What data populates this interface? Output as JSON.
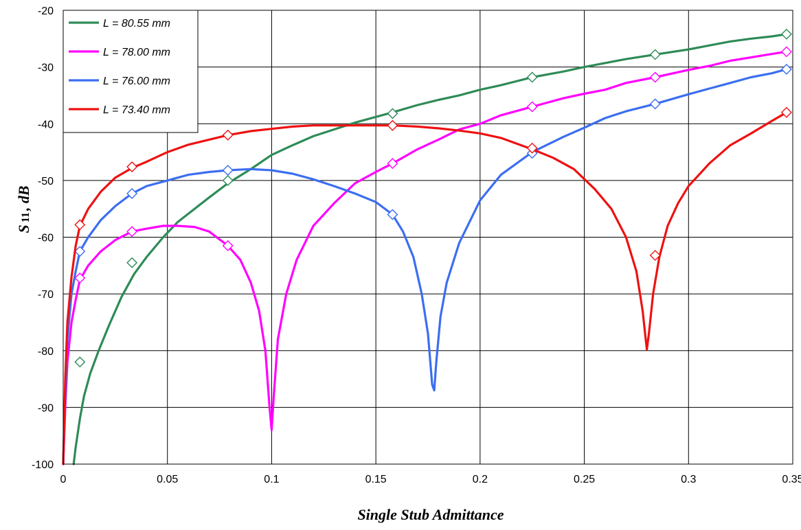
{
  "chart_data": {
    "type": "line",
    "xlabel": "Single Stub Admittance",
    "ylabel": {
      "main": "S",
      "sub": "11",
      "rest": ", dB"
    },
    "xlim": [
      0,
      0.35
    ],
    "ylim": [
      -100,
      -20
    ],
    "x_ticks": [
      0,
      0.05,
      0.1,
      0.15,
      0.2,
      0.25,
      0.3,
      0.35
    ],
    "x_tick_labels": [
      "0",
      "0.05",
      "0.1",
      "0.15",
      "0.2",
      "0.25",
      "0.3",
      "0.35"
    ],
    "y_ticks": [
      -20,
      -30,
      -40,
      -50,
      -60,
      -70,
      -80,
      -90,
      -100
    ],
    "y_tick_labels": [
      "-20",
      "-30",
      "-40",
      "-50",
      "-60",
      "-70",
      "-80",
      "-90",
      "-100"
    ],
    "grid": true,
    "legend_position": "top-left",
    "series": [
      {
        "name": "L = 80.55 mm",
        "color": "#2e8b57",
        "line": [
          [
            0.005,
            -100
          ],
          [
            0.006,
            -97
          ],
          [
            0.008,
            -92
          ],
          [
            0.01,
            -88
          ],
          [
            0.013,
            -84
          ],
          [
            0.017,
            -80
          ],
          [
            0.022,
            -75.5
          ],
          [
            0.028,
            -70.5
          ],
          [
            0.034,
            -66.5
          ],
          [
            0.04,
            -63.5
          ],
          [
            0.048,
            -60
          ],
          [
            0.055,
            -57.3
          ],
          [
            0.063,
            -55
          ],
          [
            0.07,
            -53
          ],
          [
            0.079,
            -50.5
          ],
          [
            0.09,
            -48
          ],
          [
            0.1,
            -45.5
          ],
          [
            0.11,
            -43.8
          ],
          [
            0.12,
            -42.2
          ],
          [
            0.13,
            -41
          ],
          [
            0.14,
            -39.8
          ],
          [
            0.15,
            -38.8
          ],
          [
            0.158,
            -38
          ],
          [
            0.17,
            -36.7
          ],
          [
            0.18,
            -35.8
          ],
          [
            0.19,
            -35
          ],
          [
            0.2,
            -34
          ],
          [
            0.21,
            -33.2
          ],
          [
            0.225,
            -31.8
          ],
          [
            0.24,
            -30.8
          ],
          [
            0.25,
            -30
          ],
          [
            0.26,
            -29.3
          ],
          [
            0.27,
            -28.6
          ],
          [
            0.284,
            -27.8
          ],
          [
            0.3,
            -26.9
          ],
          [
            0.31,
            -26.2
          ],
          [
            0.32,
            -25.5
          ],
          [
            0.33,
            -25
          ],
          [
            0.34,
            -24.6
          ],
          [
            0.347,
            -24.2
          ]
        ],
        "markers": [
          [
            0.008,
            -82
          ],
          [
            0.033,
            -64.5
          ],
          [
            0.079,
            -50
          ],
          [
            0.158,
            -38.2
          ],
          [
            0.225,
            -31.8
          ],
          [
            0.284,
            -27.8
          ],
          [
            0.347,
            -24.2
          ]
        ]
      },
      {
        "name": "L = 78.00 mm",
        "color": "#ff00ff",
        "line": [
          [
            0.0,
            -100
          ],
          [
            0.001,
            -90
          ],
          [
            0.002,
            -82
          ],
          [
            0.004,
            -75
          ],
          [
            0.006,
            -71
          ],
          [
            0.008,
            -67.5
          ],
          [
            0.012,
            -65
          ],
          [
            0.018,
            -62.5
          ],
          [
            0.025,
            -60.5
          ],
          [
            0.033,
            -59
          ],
          [
            0.04,
            -58.5
          ],
          [
            0.048,
            -58
          ],
          [
            0.055,
            -58
          ],
          [
            0.063,
            -58.2
          ],
          [
            0.07,
            -59
          ],
          [
            0.079,
            -61.5
          ],
          [
            0.085,
            -64
          ],
          [
            0.09,
            -68
          ],
          [
            0.094,
            -73
          ],
          [
            0.097,
            -80
          ],
          [
            0.099,
            -90
          ],
          [
            0.1,
            -94
          ],
          [
            0.101,
            -88
          ],
          [
            0.103,
            -78
          ],
          [
            0.107,
            -70
          ],
          [
            0.112,
            -64
          ],
          [
            0.12,
            -58
          ],
          [
            0.13,
            -54
          ],
          [
            0.14,
            -50.5
          ],
          [
            0.15,
            -48.5
          ],
          [
            0.158,
            -47
          ],
          [
            0.17,
            -44.5
          ],
          [
            0.18,
            -42.8
          ],
          [
            0.19,
            -41
          ],
          [
            0.2,
            -40
          ],
          [
            0.21,
            -38.5
          ],
          [
            0.225,
            -37
          ],
          [
            0.24,
            -35.5
          ],
          [
            0.25,
            -34.7
          ],
          [
            0.26,
            -34
          ],
          [
            0.27,
            -32.8
          ],
          [
            0.284,
            -31.8
          ],
          [
            0.3,
            -30.5
          ],
          [
            0.31,
            -29.8
          ],
          [
            0.32,
            -28.9
          ],
          [
            0.33,
            -28.3
          ],
          [
            0.34,
            -27.7
          ],
          [
            0.347,
            -27.3
          ]
        ],
        "markers": [
          [
            0.008,
            -67.2
          ],
          [
            0.033,
            -59
          ],
          [
            0.079,
            -61.5
          ],
          [
            0.158,
            -47
          ],
          [
            0.225,
            -37
          ],
          [
            0.284,
            -31.8
          ],
          [
            0.347,
            -27.3
          ]
        ]
      },
      {
        "name": "L = 76.00 mm",
        "color": "#3b6ef0",
        "line": [
          [
            0.0,
            -100
          ],
          [
            0.001,
            -88
          ],
          [
            0.002,
            -78
          ],
          [
            0.004,
            -70
          ],
          [
            0.006,
            -66
          ],
          [
            0.008,
            -62.5
          ],
          [
            0.012,
            -60
          ],
          [
            0.018,
            -57
          ],
          [
            0.025,
            -54.5
          ],
          [
            0.033,
            -52.3
          ],
          [
            0.04,
            -51
          ],
          [
            0.05,
            -50
          ],
          [
            0.06,
            -49
          ],
          [
            0.07,
            -48.5
          ],
          [
            0.079,
            -48.2
          ],
          [
            0.09,
            -48
          ],
          [
            0.1,
            -48.2
          ],
          [
            0.11,
            -48.8
          ],
          [
            0.12,
            -49.8
          ],
          [
            0.13,
            -51
          ],
          [
            0.14,
            -52.3
          ],
          [
            0.15,
            -53.8
          ],
          [
            0.158,
            -56
          ],
          [
            0.163,
            -59
          ],
          [
            0.168,
            -63.5
          ],
          [
            0.172,
            -70
          ],
          [
            0.175,
            -77
          ],
          [
            0.177,
            -86
          ],
          [
            0.178,
            -87
          ],
          [
            0.179,
            -82
          ],
          [
            0.181,
            -74
          ],
          [
            0.184,
            -68
          ],
          [
            0.19,
            -61
          ],
          [
            0.2,
            -53.5
          ],
          [
            0.21,
            -49
          ],
          [
            0.225,
            -45
          ],
          [
            0.24,
            -42.3
          ],
          [
            0.25,
            -40.7
          ],
          [
            0.26,
            -39
          ],
          [
            0.27,
            -37.8
          ],
          [
            0.284,
            -36.5
          ],
          [
            0.3,
            -34.8
          ],
          [
            0.31,
            -33.8
          ],
          [
            0.32,
            -32.8
          ],
          [
            0.33,
            -31.8
          ],
          [
            0.34,
            -31.1
          ],
          [
            0.347,
            -30.4
          ]
        ],
        "markers": [
          [
            0.008,
            -62.5
          ],
          [
            0.033,
            -52.3
          ],
          [
            0.079,
            -48.2
          ],
          [
            0.158,
            -56
          ],
          [
            0.225,
            -45.2
          ],
          [
            0.284,
            -36.5
          ],
          [
            0.347,
            -30.4
          ]
        ]
      },
      {
        "name": "L = 73.40 mm",
        "color": "#ee1111",
        "line": [
          [
            0.0,
            -100
          ],
          [
            0.001,
            -85
          ],
          [
            0.002,
            -75
          ],
          [
            0.004,
            -67
          ],
          [
            0.006,
            -61.5
          ],
          [
            0.008,
            -58
          ],
          [
            0.012,
            -55
          ],
          [
            0.018,
            -52
          ],
          [
            0.025,
            -49.5
          ],
          [
            0.033,
            -47.8
          ],
          [
            0.04,
            -46.7
          ],
          [
            0.05,
            -45
          ],
          [
            0.06,
            -43.7
          ],
          [
            0.07,
            -42.8
          ],
          [
            0.079,
            -42
          ],
          [
            0.09,
            -41.3
          ],
          [
            0.1,
            -40.9
          ],
          [
            0.11,
            -40.5
          ],
          [
            0.12,
            -40.3
          ],
          [
            0.13,
            -40.3
          ],
          [
            0.14,
            -40.3
          ],
          [
            0.15,
            -40.3
          ],
          [
            0.158,
            -40.3
          ],
          [
            0.17,
            -40.5
          ],
          [
            0.18,
            -40.8
          ],
          [
            0.19,
            -41.2
          ],
          [
            0.2,
            -41.7
          ],
          [
            0.21,
            -42.5
          ],
          [
            0.225,
            -44.5
          ],
          [
            0.235,
            -46
          ],
          [
            0.245,
            -48
          ],
          [
            0.255,
            -51.5
          ],
          [
            0.263,
            -55
          ],
          [
            0.27,
            -60
          ],
          [
            0.275,
            -66
          ],
          [
            0.278,
            -73
          ],
          [
            0.28,
            -79.8
          ],
          [
            0.281,
            -77
          ],
          [
            0.283,
            -70
          ],
          [
            0.286,
            -63.5
          ],
          [
            0.29,
            -58
          ],
          [
            0.295,
            -54
          ],
          [
            0.3,
            -51
          ],
          [
            0.31,
            -47
          ],
          [
            0.32,
            -43.8
          ],
          [
            0.33,
            -41.7
          ],
          [
            0.34,
            -39.5
          ],
          [
            0.347,
            -38
          ]
        ],
        "markers": [
          [
            0.008,
            -57.8
          ],
          [
            0.033,
            -47.6
          ],
          [
            0.079,
            -42
          ],
          [
            0.158,
            -40.3
          ],
          [
            0.225,
            -44.3
          ],
          [
            0.284,
            -63.2
          ],
          [
            0.347,
            -38
          ]
        ]
      }
    ]
  }
}
